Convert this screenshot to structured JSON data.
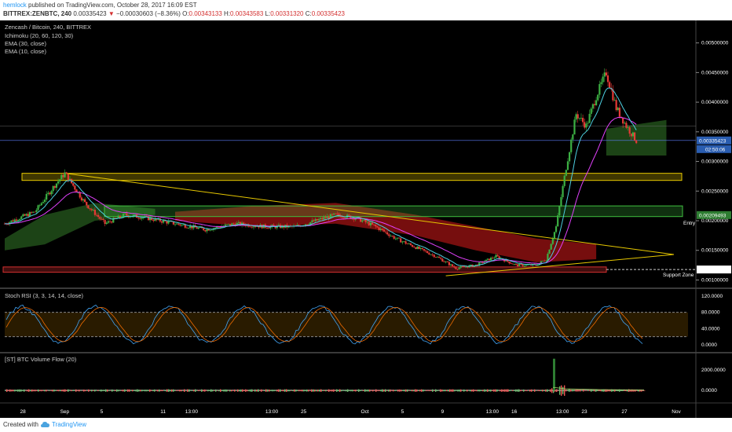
{
  "header": {
    "author": "hemlock",
    "published": "published on TradingView.com, October 28, 2017 16:09 EST",
    "symbol_line": "BITTREX:ZENBTC, 240",
    "last_price": "0.00335423",
    "arrow": "▼",
    "change": "−0.00030603 (−8.36%)",
    "open_label": "O:",
    "open": "0.00343133",
    "high_label": "H:",
    "high": "0.00343583",
    "low_label": "L:",
    "low": "0.00331320",
    "close_label": "C:",
    "close": "0.00335423"
  },
  "legend": {
    "title": "Zencash / Bitcoin, 240, BITTREX",
    "ichimoku": "Ichimoku (20, 60, 120, 30)",
    "ema30": "EMA (30, close)",
    "ema10": "EMA (10, close)",
    "stoch": "Stoch RSI (3, 3, 14, 14, close)",
    "volflow": "[ST] BTC Volume Flow (20)"
  },
  "footer": {
    "created": "Created with",
    "brand": "TradingView"
  },
  "colors": {
    "up": "#3cb043",
    "down": "#e53935",
    "ema30": "#e040fb",
    "ema10": "#4dd0e1",
    "yellow": "#e6c700",
    "green_zone": "#3fbf3f",
    "red_zone": "#d32f2f",
    "cloud_red": "#8b1010",
    "cloud_green": "#1f4a18"
  },
  "chart_data": {
    "type": "candlestick",
    "price_axis": {
      "ticks": [
        0.001,
        0.0015,
        0.002,
        0.0025,
        0.003,
        0.0035,
        0.004,
        0.0045,
        0.005
      ],
      "tick_labels": [
        "0.00100000",
        "0.00150000",
        "0.00200000",
        "0.00250000",
        "0.00300000",
        "0.00350000",
        "0.00400000",
        "0.00450000",
        "0.00500000"
      ],
      "current_price_label": "0.00335423",
      "countdown_label": "02:50:06",
      "entry_price_label": "0.00209493",
      "support_price_label": "0.00117680"
    },
    "x_axis": {
      "labels": [
        "28",
        "Sep",
        "5",
        "11",
        "13:00",
        "13:00",
        "25",
        "Oct",
        "5",
        "9",
        "13:00",
        "16",
        "13:00",
        "23",
        "27",
        "Nov"
      ],
      "dates": [
        "2017-08-28",
        "2017-09-01",
        "2017-09-05",
        "2017-09-11",
        "2017-09-13T13:00",
        "2017-09-21T13:00",
        "2017-09-25",
        "2017-10-01",
        "2017-10-05",
        "2017-10-09",
        "2017-10-13T13:00",
        "2017-10-16",
        "2017-10-20T13:00",
        "2017-10-23",
        "2017-10-27",
        "2017-11-01"
      ]
    },
    "price_path": [
      [
        "2017-08-26",
        0.00195
      ],
      [
        "2017-08-29",
        0.00215
      ],
      [
        "2017-08-31",
        0.0026
      ],
      [
        "2017-09-01",
        0.0028
      ],
      [
        "2017-09-03",
        0.0023
      ],
      [
        "2017-09-05",
        0.00195
      ],
      [
        "2017-09-07",
        0.0021
      ],
      [
        "2017-09-09",
        0.00205
      ],
      [
        "2017-09-12",
        0.00195
      ],
      [
        "2017-09-15",
        0.00185
      ],
      [
        "2017-09-18",
        0.00195
      ],
      [
        "2017-09-21",
        0.0019
      ],
      [
        "2017-09-24",
        0.0019
      ],
      [
        "2017-09-26",
        0.002
      ],
      [
        "2017-09-28",
        0.0021
      ],
      [
        "2017-09-30",
        0.00205
      ],
      [
        "2017-10-02",
        0.0019
      ],
      [
        "2017-10-04",
        0.0017
      ],
      [
        "2017-10-06",
        0.00155
      ],
      [
        "2017-10-08",
        0.0014
      ],
      [
        "2017-10-10",
        0.0012
      ],
      [
        "2017-10-12",
        0.00125
      ],
      [
        "2017-10-14",
        0.0014
      ],
      [
        "2017-10-16",
        0.00125
      ],
      [
        "2017-10-18",
        0.00125
      ],
      [
        "2017-10-19",
        0.00135
      ],
      [
        "2017-10-20",
        0.0019
      ],
      [
        "2017-10-21",
        0.0029
      ],
      [
        "2017-10-22",
        0.0038
      ],
      [
        "2017-10-23",
        0.0036
      ],
      [
        "2017-10-24",
        0.0041
      ],
      [
        "2017-10-25",
        0.0045
      ],
      [
        "2017-10-26",
        0.0039
      ],
      [
        "2017-10-27",
        0.0036
      ],
      [
        "2017-10-28",
        0.00335
      ]
    ],
    "zones": {
      "resistance_box": [
        0.00268,
        0.0028
      ],
      "entry_box": [
        0.00207,
        0.00225
      ],
      "support_box": [
        0.00113,
        0.00122
      ]
    },
    "annotations": {
      "entry": "Entry",
      "support": "Support Zone"
    },
    "stoch_rsi": {
      "ticks": [
        0,
        40,
        80,
        120
      ],
      "tick_labels": [
        "0.0000",
        "40.0000",
        "80.0000",
        "120.0000"
      ],
      "band": [
        20,
        80
      ]
    },
    "volume_flow": {
      "ticks": [
        0,
        2000
      ],
      "tick_labels": [
        "0.0000",
        "2000.0000"
      ]
    }
  }
}
